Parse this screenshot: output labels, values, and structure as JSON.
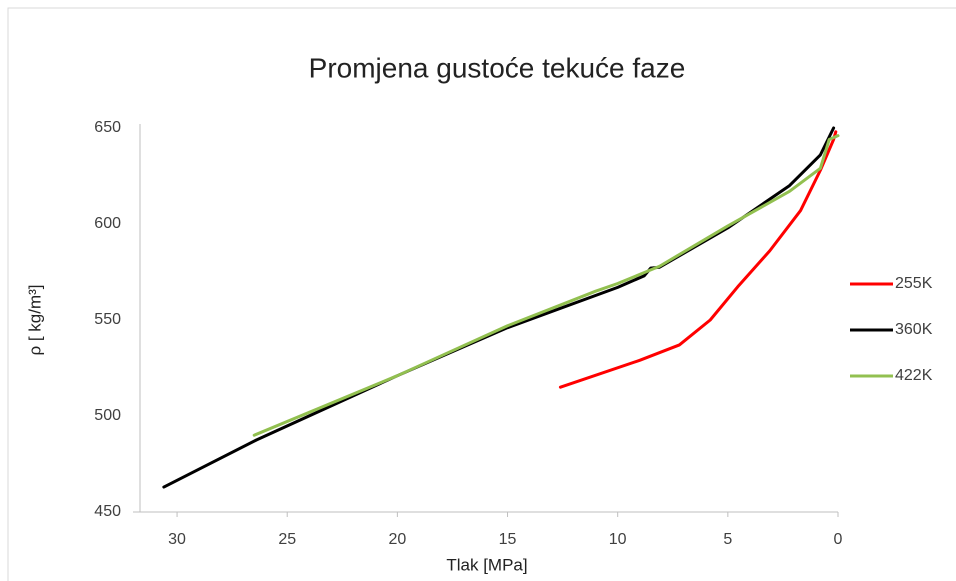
{
  "chart_data": {
    "type": "line",
    "title": "Promjena gustoće tekuće faze",
    "x_label": "Tlak [MPa]",
    "y_label": "ρ [ kg/m³]",
    "xlim": [
      32,
      0
    ],
    "xticks": [
      30,
      25,
      20,
      15,
      10,
      5,
      0
    ],
    "ylim": [
      450,
      650
    ],
    "yticks": [
      450,
      500,
      550,
      600,
      650
    ],
    "grid": false,
    "legend": "right",
    "series": [
      {
        "name": "255K",
        "color": "#ff0000",
        "x": [
          12.6,
          9.0,
          7.2,
          5.8,
          4.5,
          3.1,
          1.7,
          0.8,
          0.2,
          0.1
        ],
        "values": [
          515,
          529,
          537,
          550,
          568,
          586,
          607,
          628,
          644,
          648
        ]
      },
      {
        "name": "360K",
        "color": "#000000",
        "x": [
          30.6,
          26.4,
          20,
          15,
          10,
          8.8,
          8.5,
          8.1,
          5,
          2.2,
          0.8,
          0.2
        ],
        "values": [
          463,
          487.5,
          521,
          546,
          567,
          573,
          577,
          577.5,
          598,
          620,
          636,
          650
        ]
      },
      {
        "name": "422K",
        "color": "#92c050",
        "x": [
          26.5,
          20,
          15,
          11,
          10,
          8.1,
          5,
          2.2,
          0.8,
          0.4,
          0
        ],
        "values": [
          490,
          521,
          547,
          565,
          569,
          578,
          599,
          617,
          629,
          644,
          646
        ]
      }
    ]
  }
}
